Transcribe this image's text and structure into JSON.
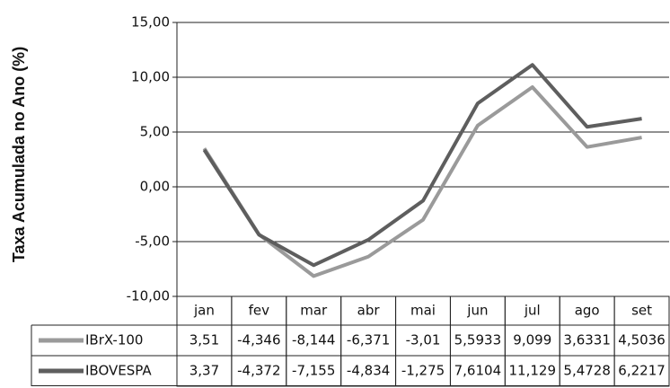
{
  "chart_data": {
    "type": "line",
    "y_axis_label": "Taxa Acumulada no Ano (%)",
    "categories": [
      "jan",
      "fev",
      "mar",
      "abr",
      "mai",
      "jun",
      "jul",
      "ago",
      "set"
    ],
    "series": [
      {
        "name": "IBrX-100",
        "color": "#9a9a9a",
        "values": [
          3.51,
          -4.346,
          -8.144,
          -6.371,
          -3.01,
          5.5933,
          9.099,
          3.6331,
          4.5036
        ],
        "value_labels": [
          "3,51",
          "-4,346",
          "-8,144",
          "-6,371",
          "-3,01",
          "5,5933",
          "9,099",
          "3,6331",
          "4,5036"
        ]
      },
      {
        "name": "IBOVESPA",
        "color": "#5e5e5e",
        "values": [
          3.37,
          -4.372,
          -7.155,
          -4.834,
          -1.275,
          7.6104,
          11.129,
          5.4728,
          6.2217
        ],
        "value_labels": [
          "3,37",
          "-4,372",
          "-7,155",
          "-4,834",
          "-1,275",
          "7,6104",
          "11,129",
          "5,4728",
          "6,2217"
        ]
      }
    ],
    "ylim": [
      -10,
      15
    ],
    "yticks": [
      {
        "value": -10,
        "label": "-10,00"
      },
      {
        "value": -5,
        "label": "-5,00"
      },
      {
        "value": 0,
        "label": "0,00"
      },
      {
        "value": 5,
        "label": "5,00"
      },
      {
        "value": 10,
        "label": "10,00"
      },
      {
        "value": 15,
        "label": "15,00"
      }
    ],
    "grid": true
  }
}
